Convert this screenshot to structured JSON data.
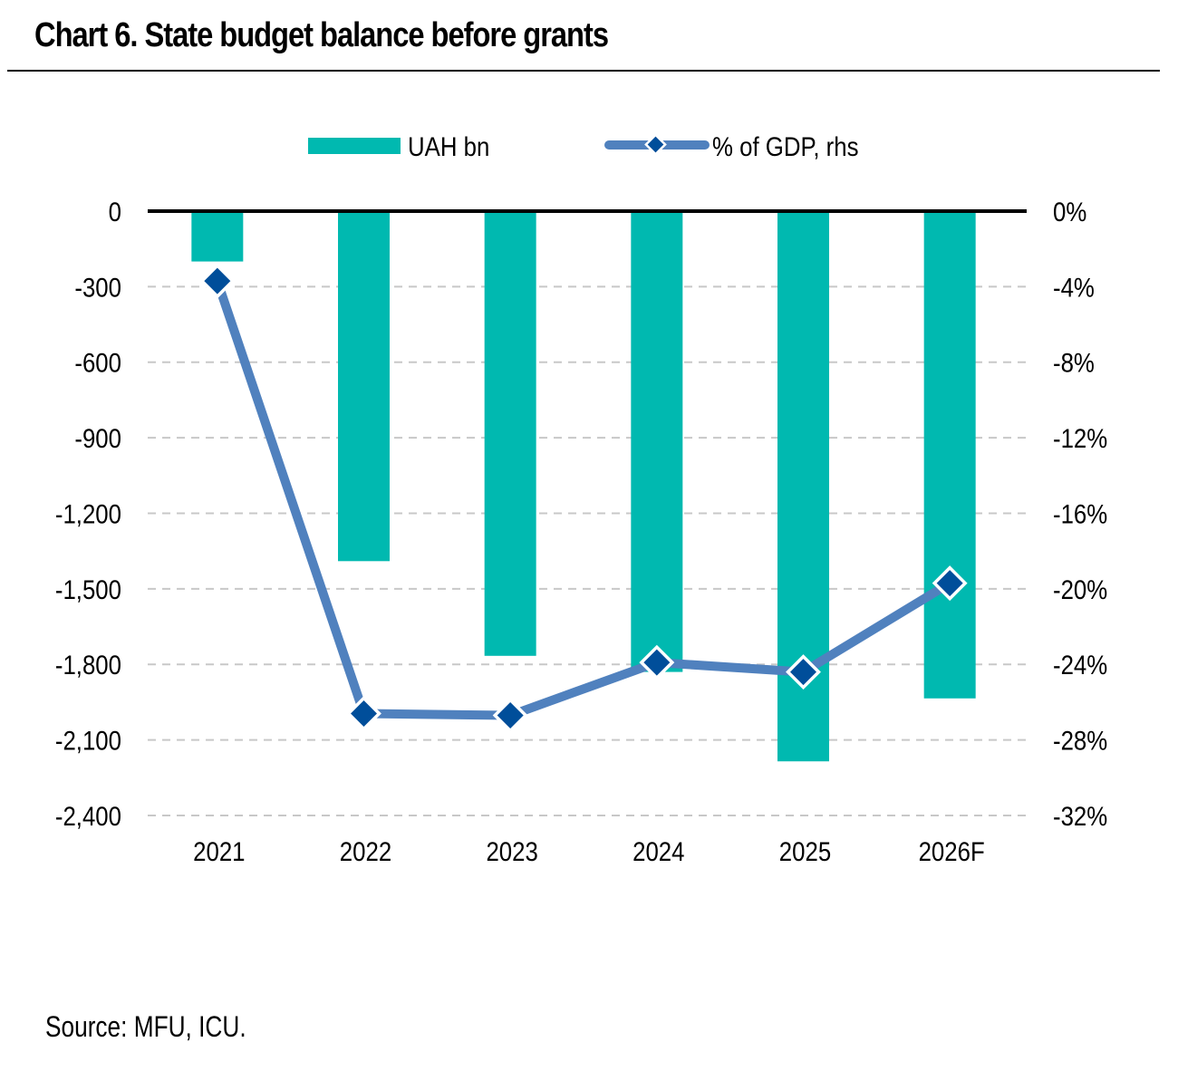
{
  "title": "Chart 6. State budget balance before grants",
  "source": "Source: MFU, ICU.",
  "colors": {
    "bar": "#00B9B0",
    "line": "#5081BE",
    "marker": "#004E9A",
    "grid": "#C8C8C8",
    "axis": "#000000"
  },
  "chart_data": {
    "type": "bar",
    "title": "Chart 6. State budget balance before grants",
    "categories": [
      "2021",
      "2022",
      "2023",
      "2024",
      "2025",
      "2026F"
    ],
    "series": [
      {
        "name": "UAH bn",
        "type": "bar",
        "axis": "left",
        "values": [
          -200,
          -1390,
          -1766,
          -1830,
          -2185,
          -1935
        ]
      },
      {
        "name": "% of GDP, rhs",
        "type": "line",
        "axis": "right",
        "values": [
          -3.7,
          -26.6,
          -26.7,
          -23.9,
          -24.4,
          -19.7
        ]
      }
    ],
    "left_axis": {
      "ylim": [
        -2400,
        0
      ],
      "ticks": [
        0,
        -300,
        -600,
        -900,
        -1200,
        -1500,
        -1800,
        -2100,
        -2400
      ],
      "tick_labels": [
        "0",
        "-300",
        "-600",
        "-900",
        "-1,200",
        "-1,500",
        "-1,800",
        "-2,100",
        "-2,400"
      ]
    },
    "right_axis": {
      "ylim": [
        -32,
        0
      ],
      "ticks": [
        0,
        -4,
        -8,
        -12,
        -16,
        -20,
        -24,
        -28,
        -32
      ],
      "tick_labels": [
        "0%",
        "-4%",
        "-8%",
        "-12%",
        "-16%",
        "-20%",
        "-24%",
        "-28%",
        "-32%"
      ]
    },
    "xlabel": "",
    "ylabel": "",
    "grid": true,
    "legend": {
      "position": "top-center",
      "entries": [
        "UAH bn",
        "% of GDP, rhs"
      ]
    }
  }
}
